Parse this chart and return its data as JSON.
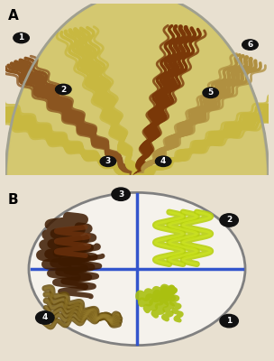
{
  "fig_width": 3.04,
  "fig_height": 4.0,
  "dpi": 100,
  "bg_color": "#e8e0d0",
  "panel_A_label": "A",
  "panel_B_label": "B",
  "label_fontsize": 11,
  "number_bg": "#111111",
  "number_fg": "#ffffff",
  "panel_A": {
    "plate_color": "#d8c870",
    "plate_rim": "#b8b090",
    "gap_color": "#c8c0a0",
    "streak_yellow": "#c8b840",
    "streak_brown": "#8B5a20",
    "streak_darkbrown": "#6a3810",
    "streak_tan": "#b09040"
  },
  "panel_B": {
    "plate_color": "#f0ede8",
    "plate_rim": "#909090",
    "line_color": "#3355aa",
    "streak_green": "#b8d020",
    "streak_darkbrown": "#5a2800",
    "streak_olive": "#7a6810",
    "streak_brightgreen": "#a8c010"
  }
}
